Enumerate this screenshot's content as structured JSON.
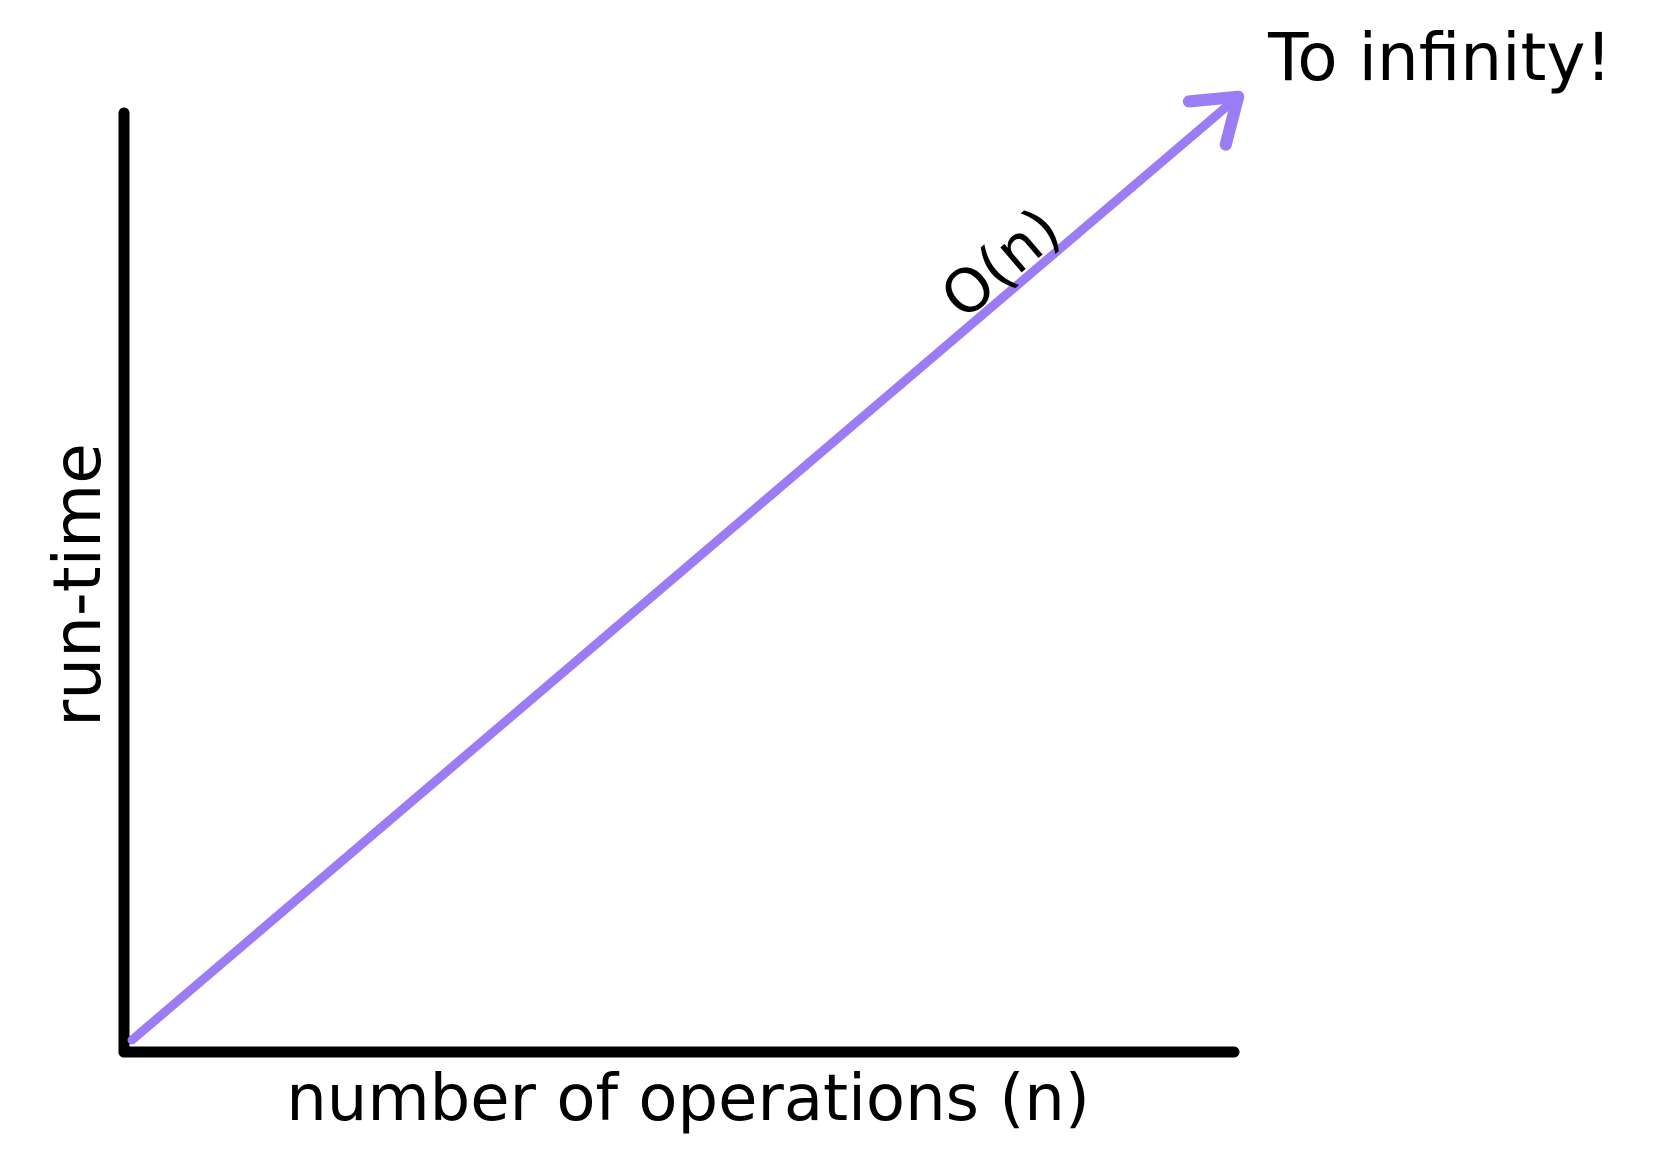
{
  "chart_data": {
    "type": "line",
    "title": "",
    "xlabel": "number of operations (n)",
    "ylabel": "run-time",
    "grid": false,
    "series": [
      {
        "name": "O(n)",
        "color": "#9b7cf4",
        "x": [
          0,
          1
        ],
        "y": [
          0,
          1
        ]
      }
    ],
    "annotations": {
      "end_label": "To infinity!"
    },
    "colors": {
      "axes": "#000000",
      "series": "#9b7cf4"
    }
  }
}
